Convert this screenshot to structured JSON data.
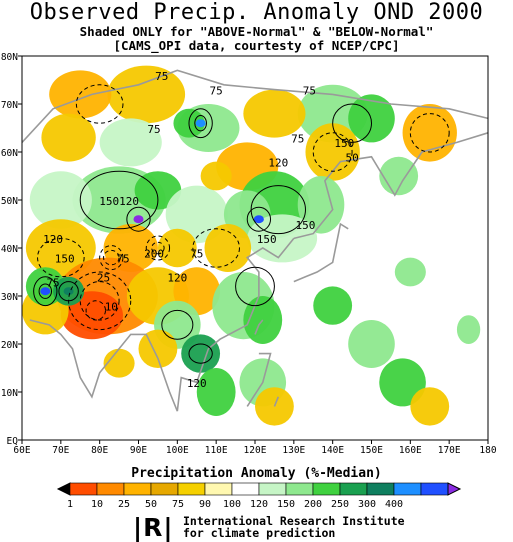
{
  "header": {
    "title": "Observed Precip. Anomaly OND 2000",
    "subtitle1": "Shaded ONLY for \"ABOVE-Normal\" & \"BELOW-Normal\"",
    "subtitle2": "[CAMS_OPI data, courtesty of NCEP/CPC]"
  },
  "map": {
    "lon_labels": [
      "60E",
      "70E",
      "80E",
      "90E",
      "100E",
      "110E",
      "120E",
      "130E",
      "140E",
      "150E",
      "160E",
      "170E",
      "180"
    ],
    "lat_labels": [
      "EQ",
      "10N",
      "20N",
      "30N",
      "40N",
      "50N",
      "60N",
      "70N",
      "80N"
    ],
    "contour_labels": [
      {
        "text": "75",
        "lon": 96,
        "lat": 75
      },
      {
        "text": "75",
        "lon": 110,
        "lat": 72
      },
      {
        "text": "75",
        "lon": 134,
        "lat": 72
      },
      {
        "text": "75",
        "lon": 94,
        "lat": 64
      },
      {
        "text": "120",
        "lon": 126,
        "lat": 57
      },
      {
        "text": "75",
        "lon": 131,
        "lat": 62
      },
      {
        "text": "150",
        "lon": 143,
        "lat": 61
      },
      {
        "text": "50",
        "lon": 145,
        "lat": 58
      },
      {
        "text": "150120",
        "lon": 85,
        "lat": 49
      },
      {
        "text": "150",
        "lon": 123,
        "lat": 41
      },
      {
        "text": "150",
        "lon": 133,
        "lat": 44
      },
      {
        "text": "120",
        "lon": 68,
        "lat": 41
      },
      {
        "text": "200",
        "lon": 94,
        "lat": 38
      },
      {
        "text": "75",
        "lon": 86,
        "lat": 37
      },
      {
        "text": "75",
        "lon": 105,
        "lat": 38
      },
      {
        "text": "150",
        "lon": 71,
        "lat": 37
      },
      {
        "text": "120",
        "lon": 100,
        "lat": 33
      },
      {
        "text": "75",
        "lon": 68,
        "lat": 32
      },
      {
        "text": "25",
        "lon": 81,
        "lat": 33
      },
      {
        "text": "10",
        "lon": 83,
        "lat": 27
      },
      {
        "text": "120",
        "lon": 105,
        "lat": 11
      }
    ]
  },
  "legend": {
    "title": "Precipitation Anomaly (%-Median)",
    "labels": [
      "1",
      "10",
      "25",
      "50",
      "75",
      "90",
      "100",
      "120",
      "150",
      "200",
      "250",
      "300",
      "400"
    ],
    "colors": [
      "#000000",
      "#ff4d00",
      "#ff8a00",
      "#ffb300",
      "#e6a800",
      "#f5d000",
      "#fff8b0",
      "#ffffff",
      "#c6f5c6",
      "#8ee88e",
      "#3fd13f",
      "#1aa050",
      "#0f7f5f",
      "#1e8fff",
      "#2050ff",
      "#8a2be2"
    ]
  },
  "footer": {
    "logo": "|R|",
    "line1": "International Research Institute",
    "line2": "for climate prediction"
  }
}
